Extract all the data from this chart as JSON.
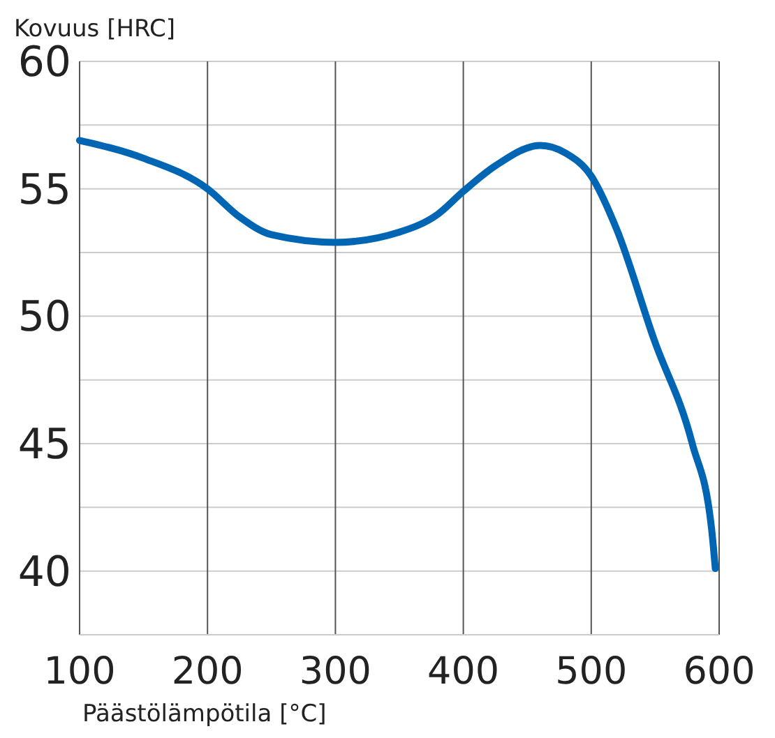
{
  "chart_data": {
    "type": "line",
    "xlabel": "Päästölämpötila [°C]",
    "ylabel": "Kovuus [HRC]",
    "x": [
      100,
      150,
      200,
      225,
      250,
      300,
      350,
      380,
      400,
      425,
      460,
      480,
      500,
      520,
      549,
      579,
      594,
      597
    ],
    "series": [
      {
        "color": "#0066b3",
        "values": [
          56.9,
          56.2,
          55.0,
          53.9,
          53.2,
          52.9,
          53.3,
          54.0,
          54.9,
          55.9,
          56.7,
          56.4,
          55.5,
          53.4,
          49.1,
          45.0,
          41.7,
          40.1
        ]
      }
    ],
    "xlim": [
      100,
      600
    ],
    "xticks": [
      100,
      200,
      300,
      400,
      500,
      600
    ],
    "ylim": [
      37.5,
      60
    ],
    "yticks": [
      {
        "value": 37.5,
        "label": null
      },
      40,
      {
        "value": 42.5,
        "label": null
      },
      45,
      {
        "value": 47.5,
        "label": null
      },
      50,
      {
        "value": 52.5,
        "label": null
      },
      55,
      {
        "value": 57.5,
        "label": null
      },
      60
    ],
    "grid": true,
    "line_style": "solid",
    "marker": "none"
  }
}
